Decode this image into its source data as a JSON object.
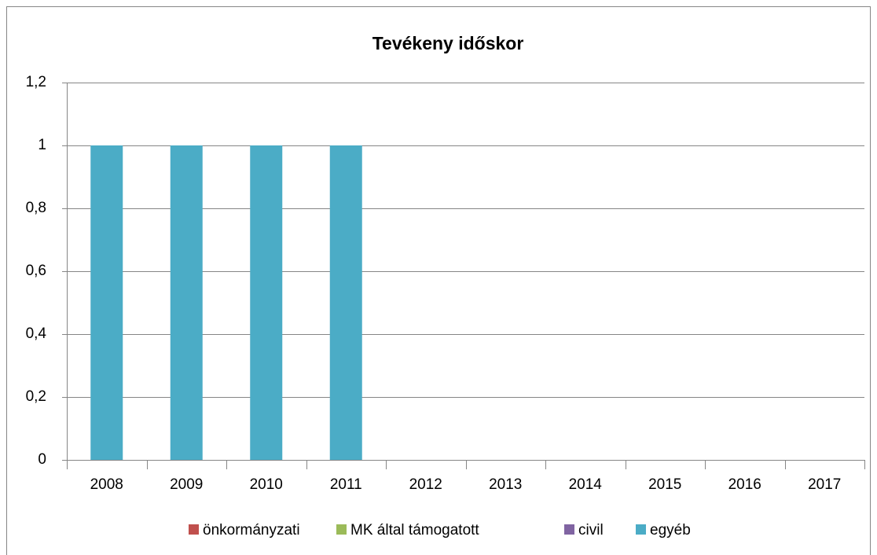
{
  "chart_data": {
    "type": "stacked_bar",
    "title": "Tevékeny időskor",
    "categories": [
      "2008",
      "2009",
      "2010",
      "2011",
      "2012",
      "2013",
      "2014",
      "2015",
      "2016",
      "2017"
    ],
    "series": [
      {
        "name": "önkormányzati",
        "color": "#c0504d",
        "values": [
          0,
          0,
          0,
          0,
          0,
          0,
          0,
          0,
          0,
          0
        ]
      },
      {
        "name": "MK által támogatott",
        "color": "#9bbb59",
        "values": [
          0,
          0,
          0,
          0,
          0,
          0,
          0,
          0,
          0,
          0
        ]
      },
      {
        "name": "civil",
        "color": "#8064a2",
        "values": [
          0,
          0,
          0,
          0,
          0,
          0,
          0,
          0,
          0,
          0
        ]
      },
      {
        "name": "egyéb",
        "color": "#4bacc6",
        "values": [
          1,
          1,
          1,
          1,
          0,
          0,
          0,
          0,
          0,
          0
        ]
      }
    ],
    "ylim": [
      0,
      1.2
    ],
    "yticks": [
      0,
      {
        "value": 0.2,
        "label": "0,2"
      },
      {
        "value": 0.4,
        "label": "0,4"
      },
      {
        "value": 0.6,
        "label": "0,6"
      },
      {
        "value": 0.8,
        "label": "0,8"
      },
      1,
      {
        "value": 1.2,
        "label": "1,2"
      }
    ],
    "grid": true,
    "legend": "bottom"
  }
}
